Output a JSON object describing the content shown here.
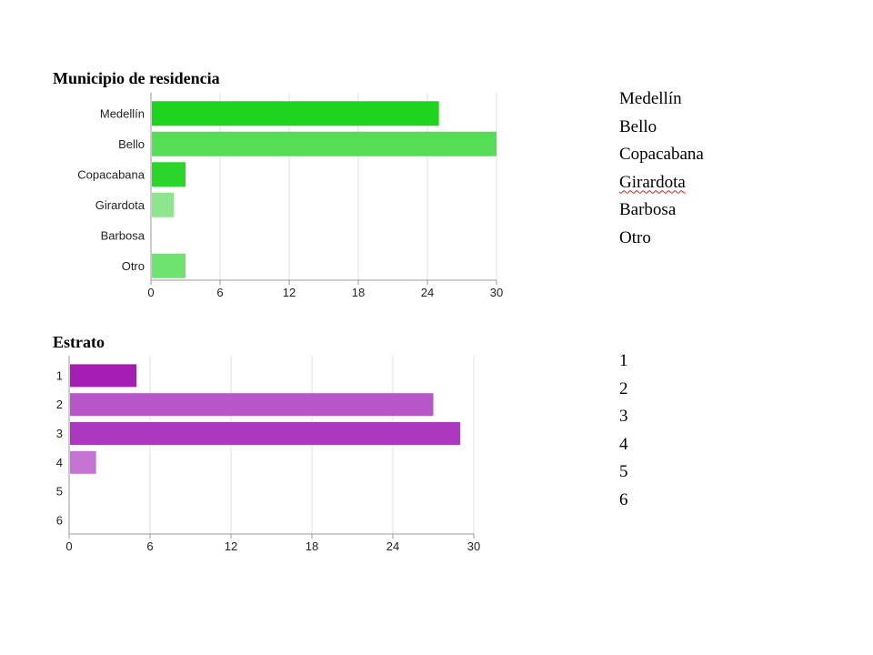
{
  "chart_data": [
    {
      "type": "bar",
      "orientation": "horizontal",
      "title": "Municipio de residencia",
      "categories": [
        "Medellín",
        "Bello",
        "Copacabana",
        "Girardota",
        "Barbosa",
        "Otro"
      ],
      "values": [
        25,
        30,
        3,
        2,
        0,
        3
      ],
      "colors": [
        "#1fd41f",
        "#55de55",
        "#2bd62b",
        "#8de68d",
        "#8de68d",
        "#6fe36f"
      ],
      "xticks": [
        "0",
        "6",
        "12",
        "18",
        "24",
        "30"
      ],
      "xlim": [
        0,
        30
      ],
      "grid": true,
      "legend_items": [
        "Medellín",
        "Bello",
        "Copacabana",
        "Girardota",
        "Barbosa",
        "Otro"
      ]
    },
    {
      "type": "bar",
      "orientation": "horizontal",
      "title": "Estrato",
      "categories": [
        "1",
        "2",
        "3",
        "4",
        "5",
        "6"
      ],
      "values": [
        5,
        27,
        29,
        2,
        0,
        0
      ],
      "colors": [
        "#a41eb4",
        "#b656c8",
        "#ab38bf",
        "#c473d2",
        "#c473d2",
        "#c473d2"
      ],
      "xticks": [
        "0",
        "6",
        "12",
        "18",
        "24",
        "30"
      ],
      "xlim": [
        0,
        30
      ],
      "grid": true,
      "legend_items": [
        "1",
        "2",
        "3",
        "4",
        "5",
        "6"
      ]
    }
  ]
}
